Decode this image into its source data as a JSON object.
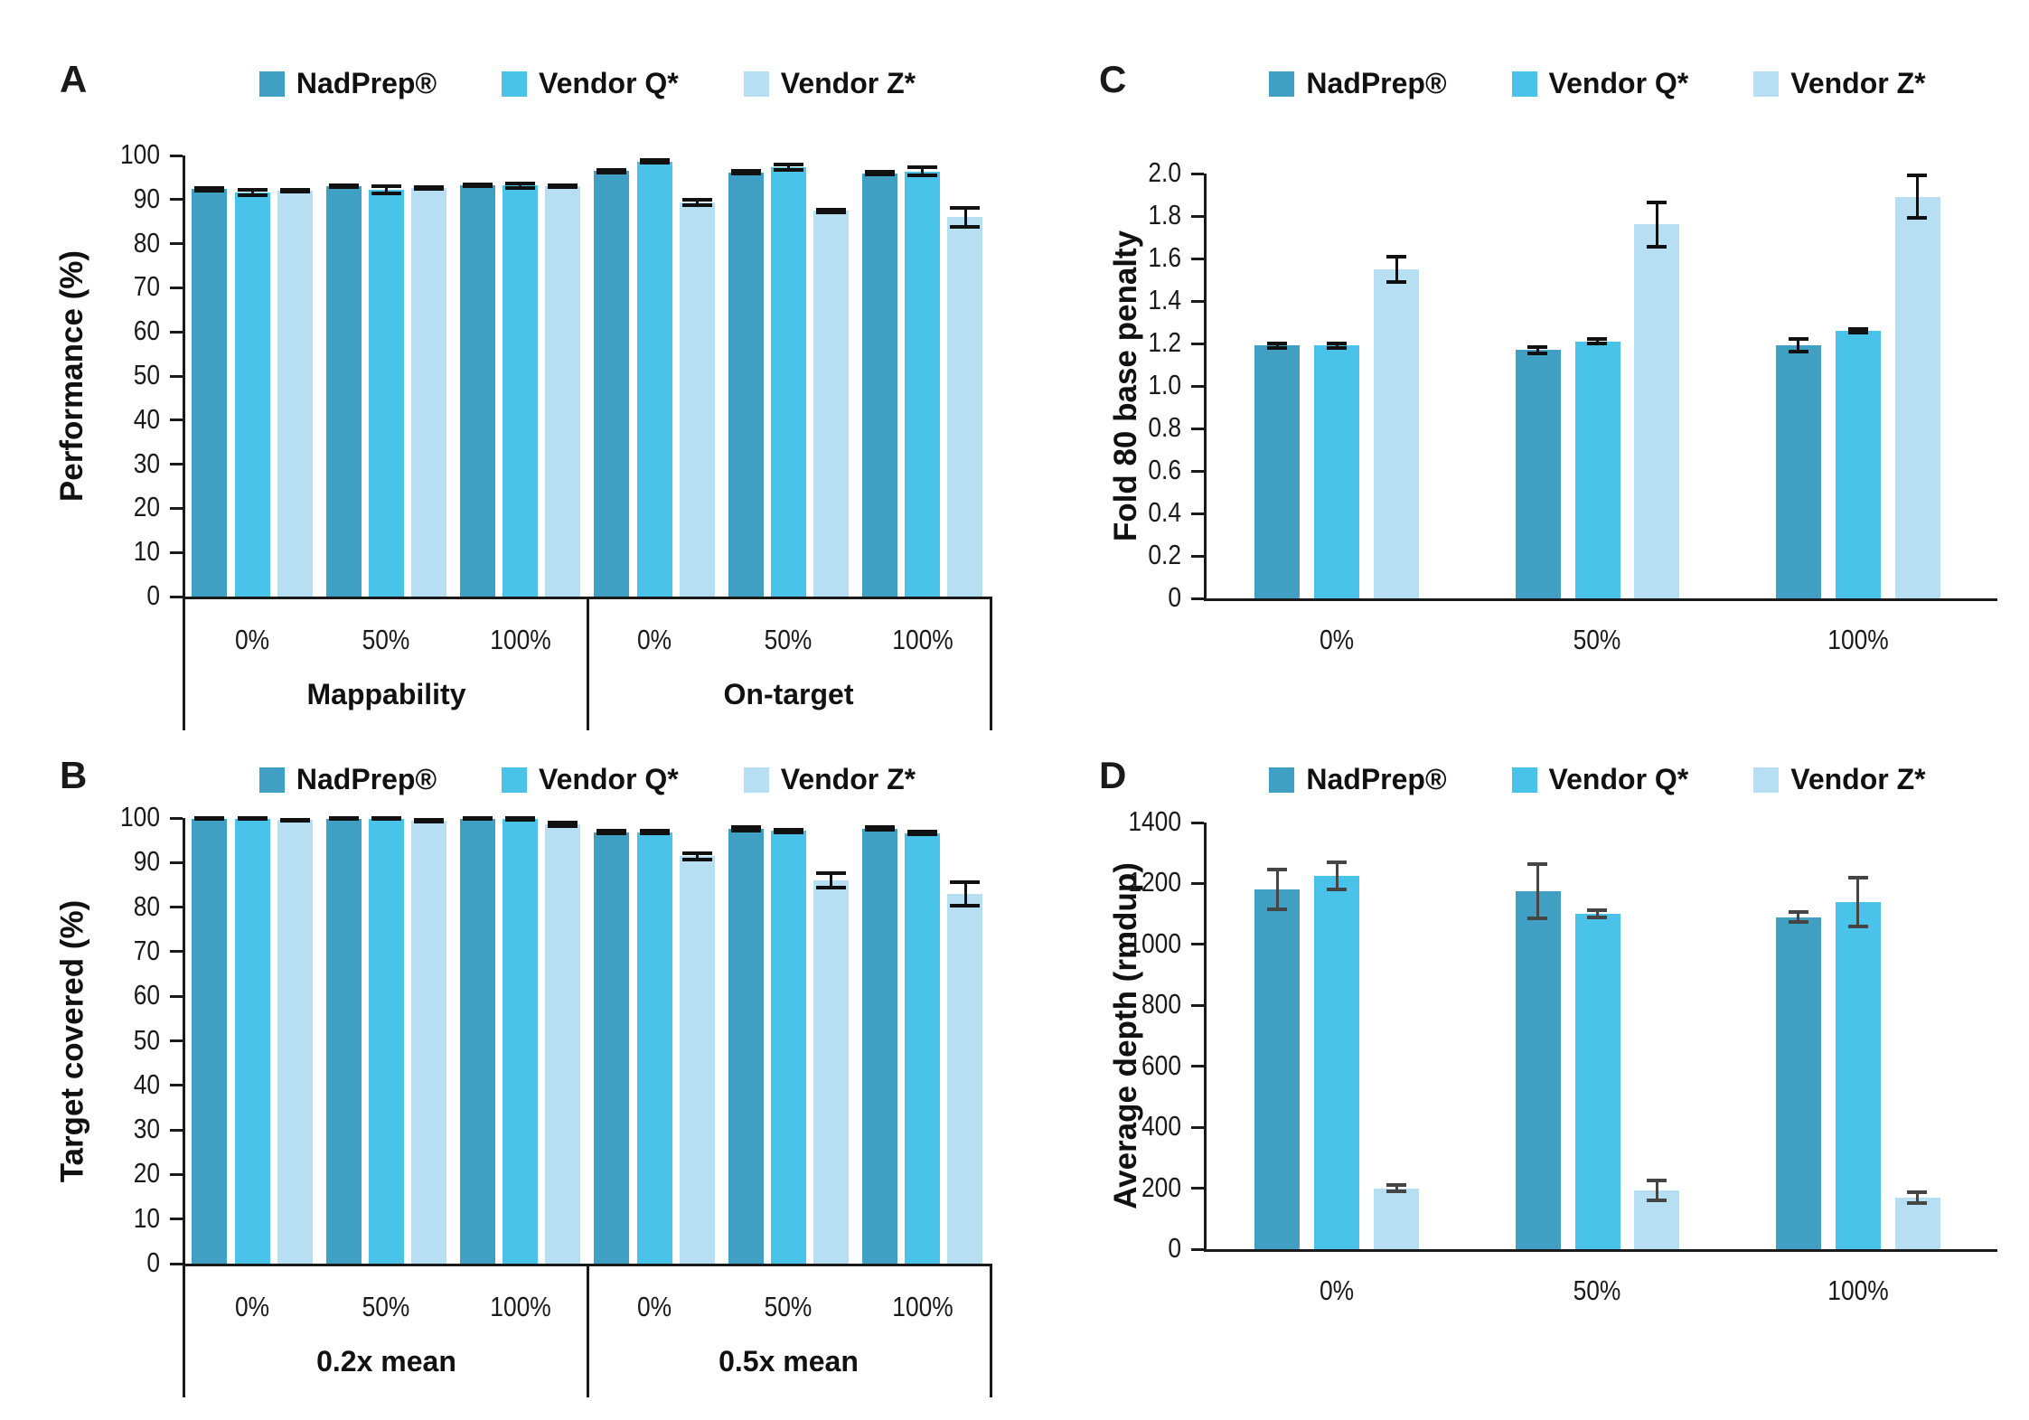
{
  "figure": {
    "background": "#ffffff",
    "series_colors": [
      "#3FA0C4",
      "#4AC3EB",
      "#B7DFF4"
    ],
    "axis_color": "#1a1a1a",
    "text_color": "#111111"
  },
  "legend_labels": [
    "NadPrep®",
    "Vendor Q*",
    "Vendor Z*"
  ],
  "chart_data": [
    {
      "id": "A",
      "type": "bar",
      "panel_label": "A",
      "ylabel": "Performance (%)",
      "ylim": [
        0,
        100
      ],
      "ytick_labels": [
        "0",
        "10",
        "20",
        "30",
        "40",
        "50",
        "60",
        "70",
        "80",
        "90",
        "100"
      ],
      "grid": false,
      "legend_position": "top",
      "error_color": "#111111",
      "supergroups": [
        {
          "label": "Mappability",
          "categories": [
            "0%",
            "50%",
            "100%"
          ]
        },
        {
          "label": "On-target",
          "categories": [
            "0%",
            "50%",
            "100%"
          ]
        }
      ],
      "series": [
        {
          "name": "NadPrep®",
          "values": [
            92.4,
            93.0,
            93.2,
            96.5,
            96.2,
            96.0
          ],
          "errors": [
            0.3,
            0.2,
            0.2,
            0.3,
            0.3,
            0.3
          ]
        },
        {
          "name": "Vendor Q*",
          "values": [
            91.6,
            92.2,
            93.2,
            98.6,
            97.3,
            96.4
          ],
          "errors": [
            0.7,
            0.9,
            0.5,
            0.3,
            0.6,
            0.9
          ]
        },
        {
          "name": "Vendor Z*",
          "values": [
            92.0,
            92.6,
            93.1,
            89.3,
            87.4,
            86.0
          ],
          "errors": [
            0.2,
            0.2,
            0.2,
            0.6,
            0.4,
            2.2
          ]
        }
      ]
    },
    {
      "id": "B",
      "type": "bar",
      "panel_label": "B",
      "ylabel": "Target covered (%)",
      "ylim": [
        0,
        100
      ],
      "ytick_labels": [
        "0",
        "10",
        "20",
        "30",
        "40",
        "50",
        "60",
        "70",
        "80",
        "90",
        "100"
      ],
      "grid": false,
      "legend_position": "top",
      "error_color": "#111111",
      "supergroups": [
        {
          "label": "0.2x mean",
          "categories": [
            "0%",
            "50%",
            "100%"
          ]
        },
        {
          "label": "0.5x mean",
          "categories": [
            "0%",
            "50%",
            "100%"
          ]
        }
      ],
      "series": [
        {
          "name": "NadPrep®",
          "values": [
            99.8,
            99.8,
            99.8,
            96.8,
            97.6,
            97.6
          ],
          "errors": [
            0.1,
            0.1,
            0.1,
            0.3,
            0.4,
            0.3
          ]
        },
        {
          "name": "Vendor Q*",
          "values": [
            99.8,
            99.8,
            99.8,
            96.8,
            97.1,
            96.6
          ],
          "errors": [
            0.1,
            0.1,
            0.2,
            0.3,
            0.3,
            0.3
          ]
        },
        {
          "name": "Vendor Z*",
          "values": [
            99.5,
            99.4,
            98.5,
            91.4,
            86.0,
            83.0
          ],
          "errors": [
            0.1,
            0.2,
            0.4,
            0.7,
            1.6,
            2.6
          ]
        }
      ]
    },
    {
      "id": "C",
      "type": "bar",
      "panel_label": "C",
      "ylabel": "Fold 80 base penalty",
      "ylim": [
        0,
        2.0
      ],
      "ytick_labels": [
        "0",
        "0.2",
        "0.4",
        "0.6",
        "0.8",
        "1.0",
        "1.2",
        "1.4",
        "1.6",
        "1.8",
        "2.0"
      ],
      "grid": false,
      "legend_position": "top",
      "error_color": "#111111",
      "categories": [
        "0%",
        "50%",
        "100%"
      ],
      "series": [
        {
          "name": "NadPrep®",
          "values": [
            1.19,
            1.17,
            1.19
          ],
          "errors": [
            0.01,
            0.015,
            0.03
          ]
        },
        {
          "name": "Vendor Q*",
          "values": [
            1.19,
            1.21,
            1.26
          ],
          "errors": [
            0.01,
            0.01,
            0.01
          ]
        },
        {
          "name": "Vendor Z*",
          "values": [
            1.55,
            1.76,
            1.89
          ],
          "errors": [
            0.06,
            0.105,
            0.1
          ]
        }
      ]
    },
    {
      "id": "D",
      "type": "bar",
      "panel_label": "D",
      "ylabel": "Average depth (rmdup)",
      "ylim": [
        0,
        1400
      ],
      "ytick_labels": [
        "0",
        "200",
        "400",
        "600",
        "800",
        "1000",
        "1200",
        "1400"
      ],
      "grid": false,
      "legend_position": "top",
      "error_color": "#454545",
      "categories": [
        "0%",
        "50%",
        "100%"
      ],
      "series": [
        {
          "name": "NadPrep®",
          "values": [
            1180,
            1175,
            1090
          ],
          "errors": [
            65,
            90,
            15
          ]
        },
        {
          "name": "Vendor Q*",
          "values": [
            1225,
            1100,
            1140
          ],
          "errors": [
            45,
            12,
            80
          ]
        },
        {
          "name": "Vendor Z*",
          "values": [
            200,
            192,
            168
          ],
          "errors": [
            10,
            32,
            18
          ]
        }
      ]
    }
  ]
}
